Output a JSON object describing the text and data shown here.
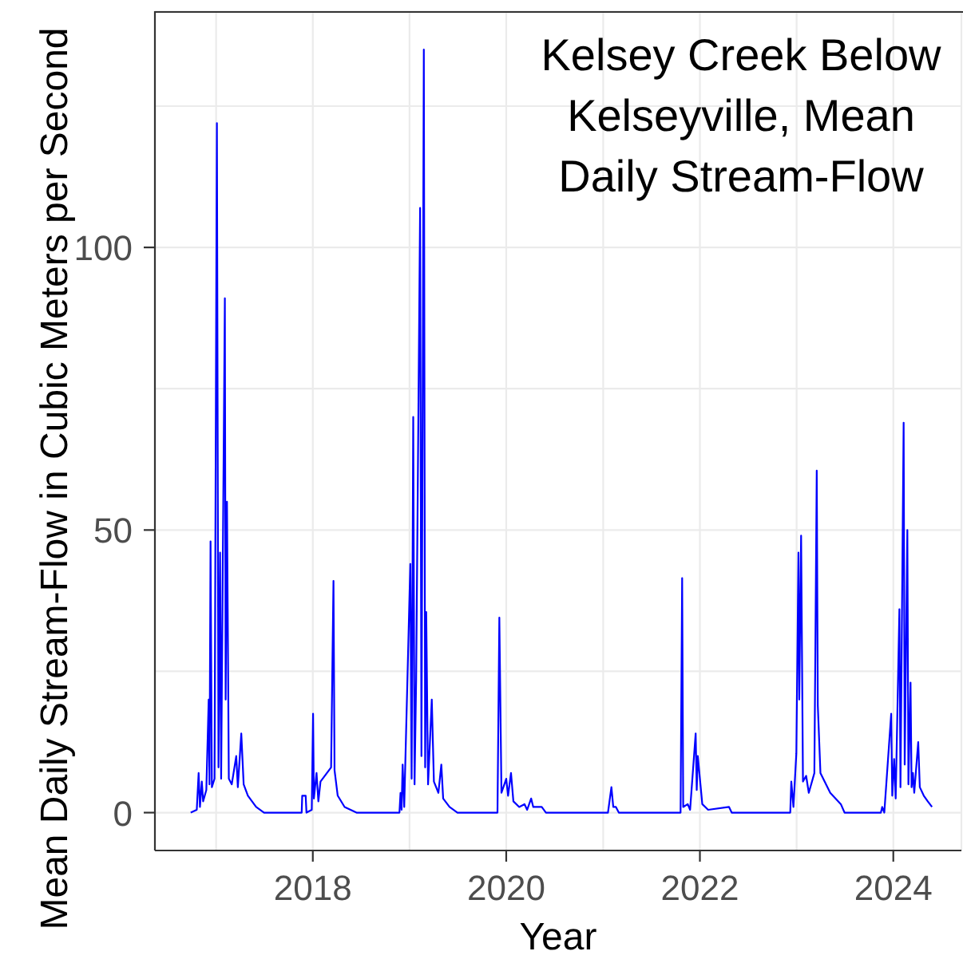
{
  "chart_data": {
    "type": "line",
    "title": "Kelsey Creek Below Kelseyville, Mean Daily Stream-Flow",
    "xlabel": "Year",
    "ylabel": "Mean Daily Stream-Flow in Cubic Meters per Second",
    "x": [
      "2016-09-27",
      "2016-10-20",
      "2016-10-27",
      "2016-11-01",
      "2016-11-08",
      "2016-11-13",
      "2016-11-25",
      "2016-12-04",
      "2016-12-07",
      "2016-12-11",
      "2016-12-16",
      "2016-12-26",
      "2017-01-04",
      "2017-01-10",
      "2017-01-16",
      "2017-01-20",
      "2017-02-03",
      "2017-02-06",
      "2017-02-11",
      "2017-02-18",
      "2017-03-01",
      "2017-03-18",
      "2017-03-24",
      "2017-04-06",
      "2017-04-15",
      "2017-05-01",
      "2017-06-01",
      "2017-07-01",
      "2017-11-20",
      "2017-11-22",
      "2017-12-05",
      "2017-12-08",
      "2017-12-28",
      "2018-01-02",
      "2018-01-05",
      "2018-01-15",
      "2018-01-22",
      "2018-01-30",
      "2018-03-11",
      "2018-03-20",
      "2018-03-24",
      "2018-04-05",
      "2018-05-01",
      "2018-06-15",
      "2018-11-24",
      "2018-11-28",
      "2018-12-02",
      "2018-12-06",
      "2018-12-12",
      "2019-01-04",
      "2019-01-09",
      "2019-01-15",
      "2019-01-20",
      "2019-01-26",
      "2019-02-10",
      "2019-02-15",
      "2019-02-24",
      "2019-03-01",
      "2019-03-05",
      "2019-03-12",
      "2019-03-26",
      "2019-04-03",
      "2019-04-20",
      "2019-05-01",
      "2019-05-08",
      "2019-06-01",
      "2019-07-01",
      "2019-11-29",
      "2019-12-06",
      "2019-12-14",
      "2020-01-01",
      "2020-01-08",
      "2020-01-19",
      "2020-01-28",
      "2020-02-19",
      "2020-03-10",
      "2020-03-20",
      "2020-04-04",
      "2020-04-12",
      "2020-05-14",
      "2020-05-30",
      "2021-01-19",
      "2021-02-01",
      "2021-02-08",
      "2021-02-18",
      "2021-03-01",
      "2021-10-20",
      "2021-10-26",
      "2021-10-30",
      "2021-11-16",
      "2021-11-25",
      "2021-12-16",
      "2021-12-20",
      "2021-12-24",
      "2022-01-10",
      "2022-02-01",
      "2022-04-21",
      "2022-05-01",
      "2022-12-08",
      "2022-12-12",
      "2022-12-20",
      "2022-12-31",
      "2023-01-08",
      "2023-01-11",
      "2023-01-18",
      "2023-01-25",
      "2023-02-06",
      "2023-02-16",
      "2023-03-09",
      "2023-03-13",
      "2023-03-18",
      "2023-03-22",
      "2023-04-01",
      "2023-05-08",
      "2023-06-17",
      "2023-07-01",
      "2023-11-15",
      "2023-11-20",
      "2023-11-28",
      "2023-12-24",
      "2023-12-28",
      "2024-01-04",
      "2024-01-10",
      "2024-01-24",
      "2024-01-28",
      "2024-02-09",
      "2024-02-13",
      "2024-02-23",
      "2024-02-27",
      "2024-03-06",
      "2024-03-10",
      "2024-03-15",
      "2024-03-20",
      "2024-04-04",
      "2024-04-10",
      "2024-04-25",
      "2024-05-10",
      "2024-05-26"
    ],
    "series": [
      {
        "color": "#0000ff",
        "values": [
          0,
          0.5,
          7,
          1,
          5.5,
          2,
          4,
          20,
          5,
          48,
          4.5,
          6,
          122,
          8,
          46,
          6,
          91,
          20,
          55,
          6,
          5,
          10,
          4.5,
          14,
          5,
          3,
          1,
          0,
          0,
          3,
          3,
          0,
          0.5,
          17.5,
          2.5,
          7,
          2,
          5.5,
          8,
          41,
          7.5,
          3,
          1,
          0,
          0,
          3.5,
          0.5,
          8.5,
          1,
          44,
          6,
          70,
          5,
          23.5,
          107,
          10,
          135,
          8,
          35.5,
          5,
          20,
          5.5,
          3.5,
          8.5,
          2.5,
          1,
          0,
          0,
          34.5,
          3.5,
          6,
          3,
          7,
          2,
          1,
          1.5,
          0.5,
          2.5,
          1,
          1,
          0,
          0,
          4.5,
          1,
          1,
          0,
          0,
          41.5,
          1,
          1.5,
          0.5,
          14,
          4,
          10,
          1.5,
          0.5,
          1,
          0,
          0,
          5.5,
          1,
          10.5,
          46,
          20,
          49,
          5.5,
          6.5,
          3.5,
          7,
          30,
          60.5,
          19,
          7,
          3.5,
          1.5,
          0,
          0,
          1,
          0,
          17.5,
          3,
          9.5,
          2.5,
          36,
          4.5,
          69,
          8.5,
          50,
          5,
          23,
          4.5,
          7,
          3.5,
          12.5,
          4.5,
          3,
          2,
          1
        ]
      }
    ],
    "xlim": [
      "2016-05-15",
      "2024-09-14"
    ],
    "xticks": [
      {
        "value": "2017",
        "label": null
      },
      "2018",
      {
        "value": "2019",
        "label": null
      },
      "2020",
      {
        "value": "2021",
        "label": null
      },
      "2022",
      {
        "value": "2023",
        "label": null
      },
      "2024"
    ],
    "ylim": [
      -6.7,
      141.8
    ],
    "yticks": [
      0,
      {
        "value": 25,
        "label": null
      },
      50,
      {
        "value": 75,
        "label": null
      },
      100,
      {
        "value": 125,
        "label": null
      }
    ],
    "grid": true
  }
}
